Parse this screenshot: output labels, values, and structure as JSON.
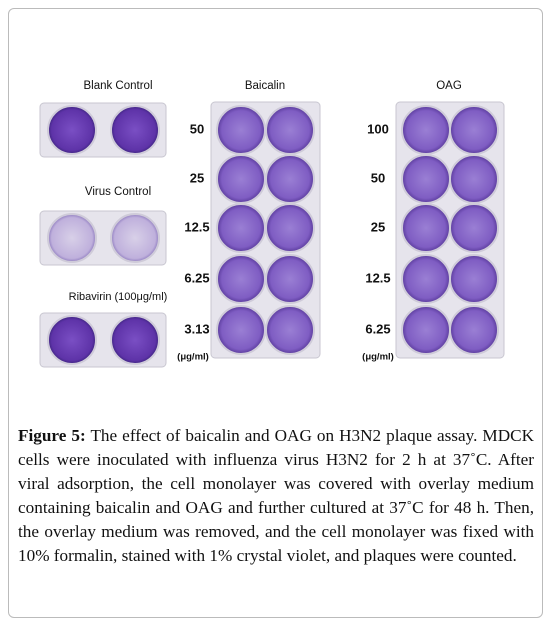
{
  "figure": {
    "left_panels": [
      {
        "label": "Blank Control"
      },
      {
        "label": "Virus Control"
      },
      {
        "label": "Ribavirin (100μg/ml)"
      }
    ],
    "baicalin": {
      "title": "Baicalin",
      "concentrations": [
        "50",
        "25",
        "12.5",
        "6.25",
        "3.13"
      ],
      "unit": "(μg/ml)"
    },
    "oag": {
      "title": "OAG",
      "concentrations": [
        "100",
        "50",
        "25",
        "12.5",
        "6.25"
      ],
      "unit": "(μg/ml)"
    }
  },
  "caption": {
    "label": "Figure 5:",
    "text": "The effect of baicalin and OAG on H3N2 plaque assay. MDCK cells were inoculated with influenza virus H3N2 for 2 h at 37˚C. After viral adsorption, the cell monolayer was covered with overlay medium containing baicalin and OAG and further cultured at 37˚C for 48 h. Then, the overlay medium was removed, and the cell monolayer was fixed with 10% formalin, stained with 1% crystal violet, and plaques were counted."
  }
}
